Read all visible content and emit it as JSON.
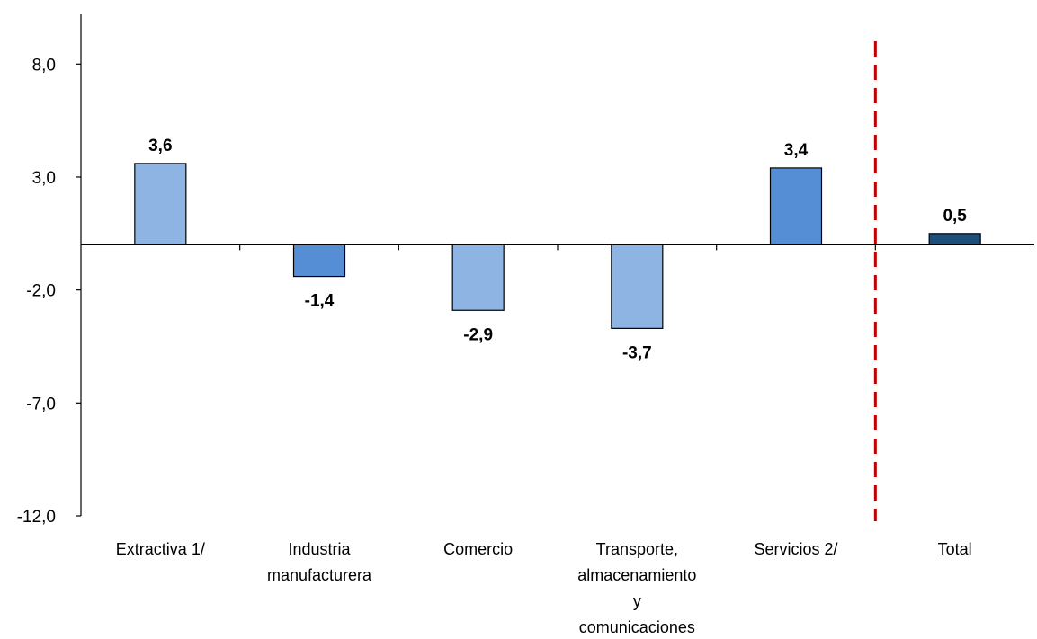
{
  "chart_data": {
    "type": "bar",
    "categories": [
      [
        "Extractiva 1/"
      ],
      [
        "Industria",
        "manufacturera"
      ],
      [
        "Comercio"
      ],
      [
        "Transporte,",
        "almacenamiento",
        "y",
        "comunicaciones"
      ],
      [
        "Servicios 2/"
      ],
      [
        "Total"
      ]
    ],
    "values": [
      3.6,
      -1.4,
      -2.9,
      -3.7,
      3.4,
      0.5
    ],
    "data_labels": [
      "3,6",
      "-1,4",
      "-2,9",
      "-3,7",
      "3,4",
      "0,5"
    ],
    "bar_colors": [
      "#8eb4e3",
      "#558ed5",
      "#8eb4e3",
      "#8eb4e3",
      "#558ed5",
      "#1f4e79"
    ],
    "y_ticks": [
      8.0,
      3.0,
      -2.0,
      -7.0,
      -12.0
    ],
    "y_tick_labels": [
      "8,0",
      "3,0",
      "-2,0",
      "-7,0",
      "-12,0"
    ],
    "ylim": [
      -12.0,
      10.2
    ],
    "separator_line_color": "#c00000",
    "separator_after_category": 5,
    "grid": false,
    "title": "",
    "xlabel": "",
    "ylabel": ""
  }
}
